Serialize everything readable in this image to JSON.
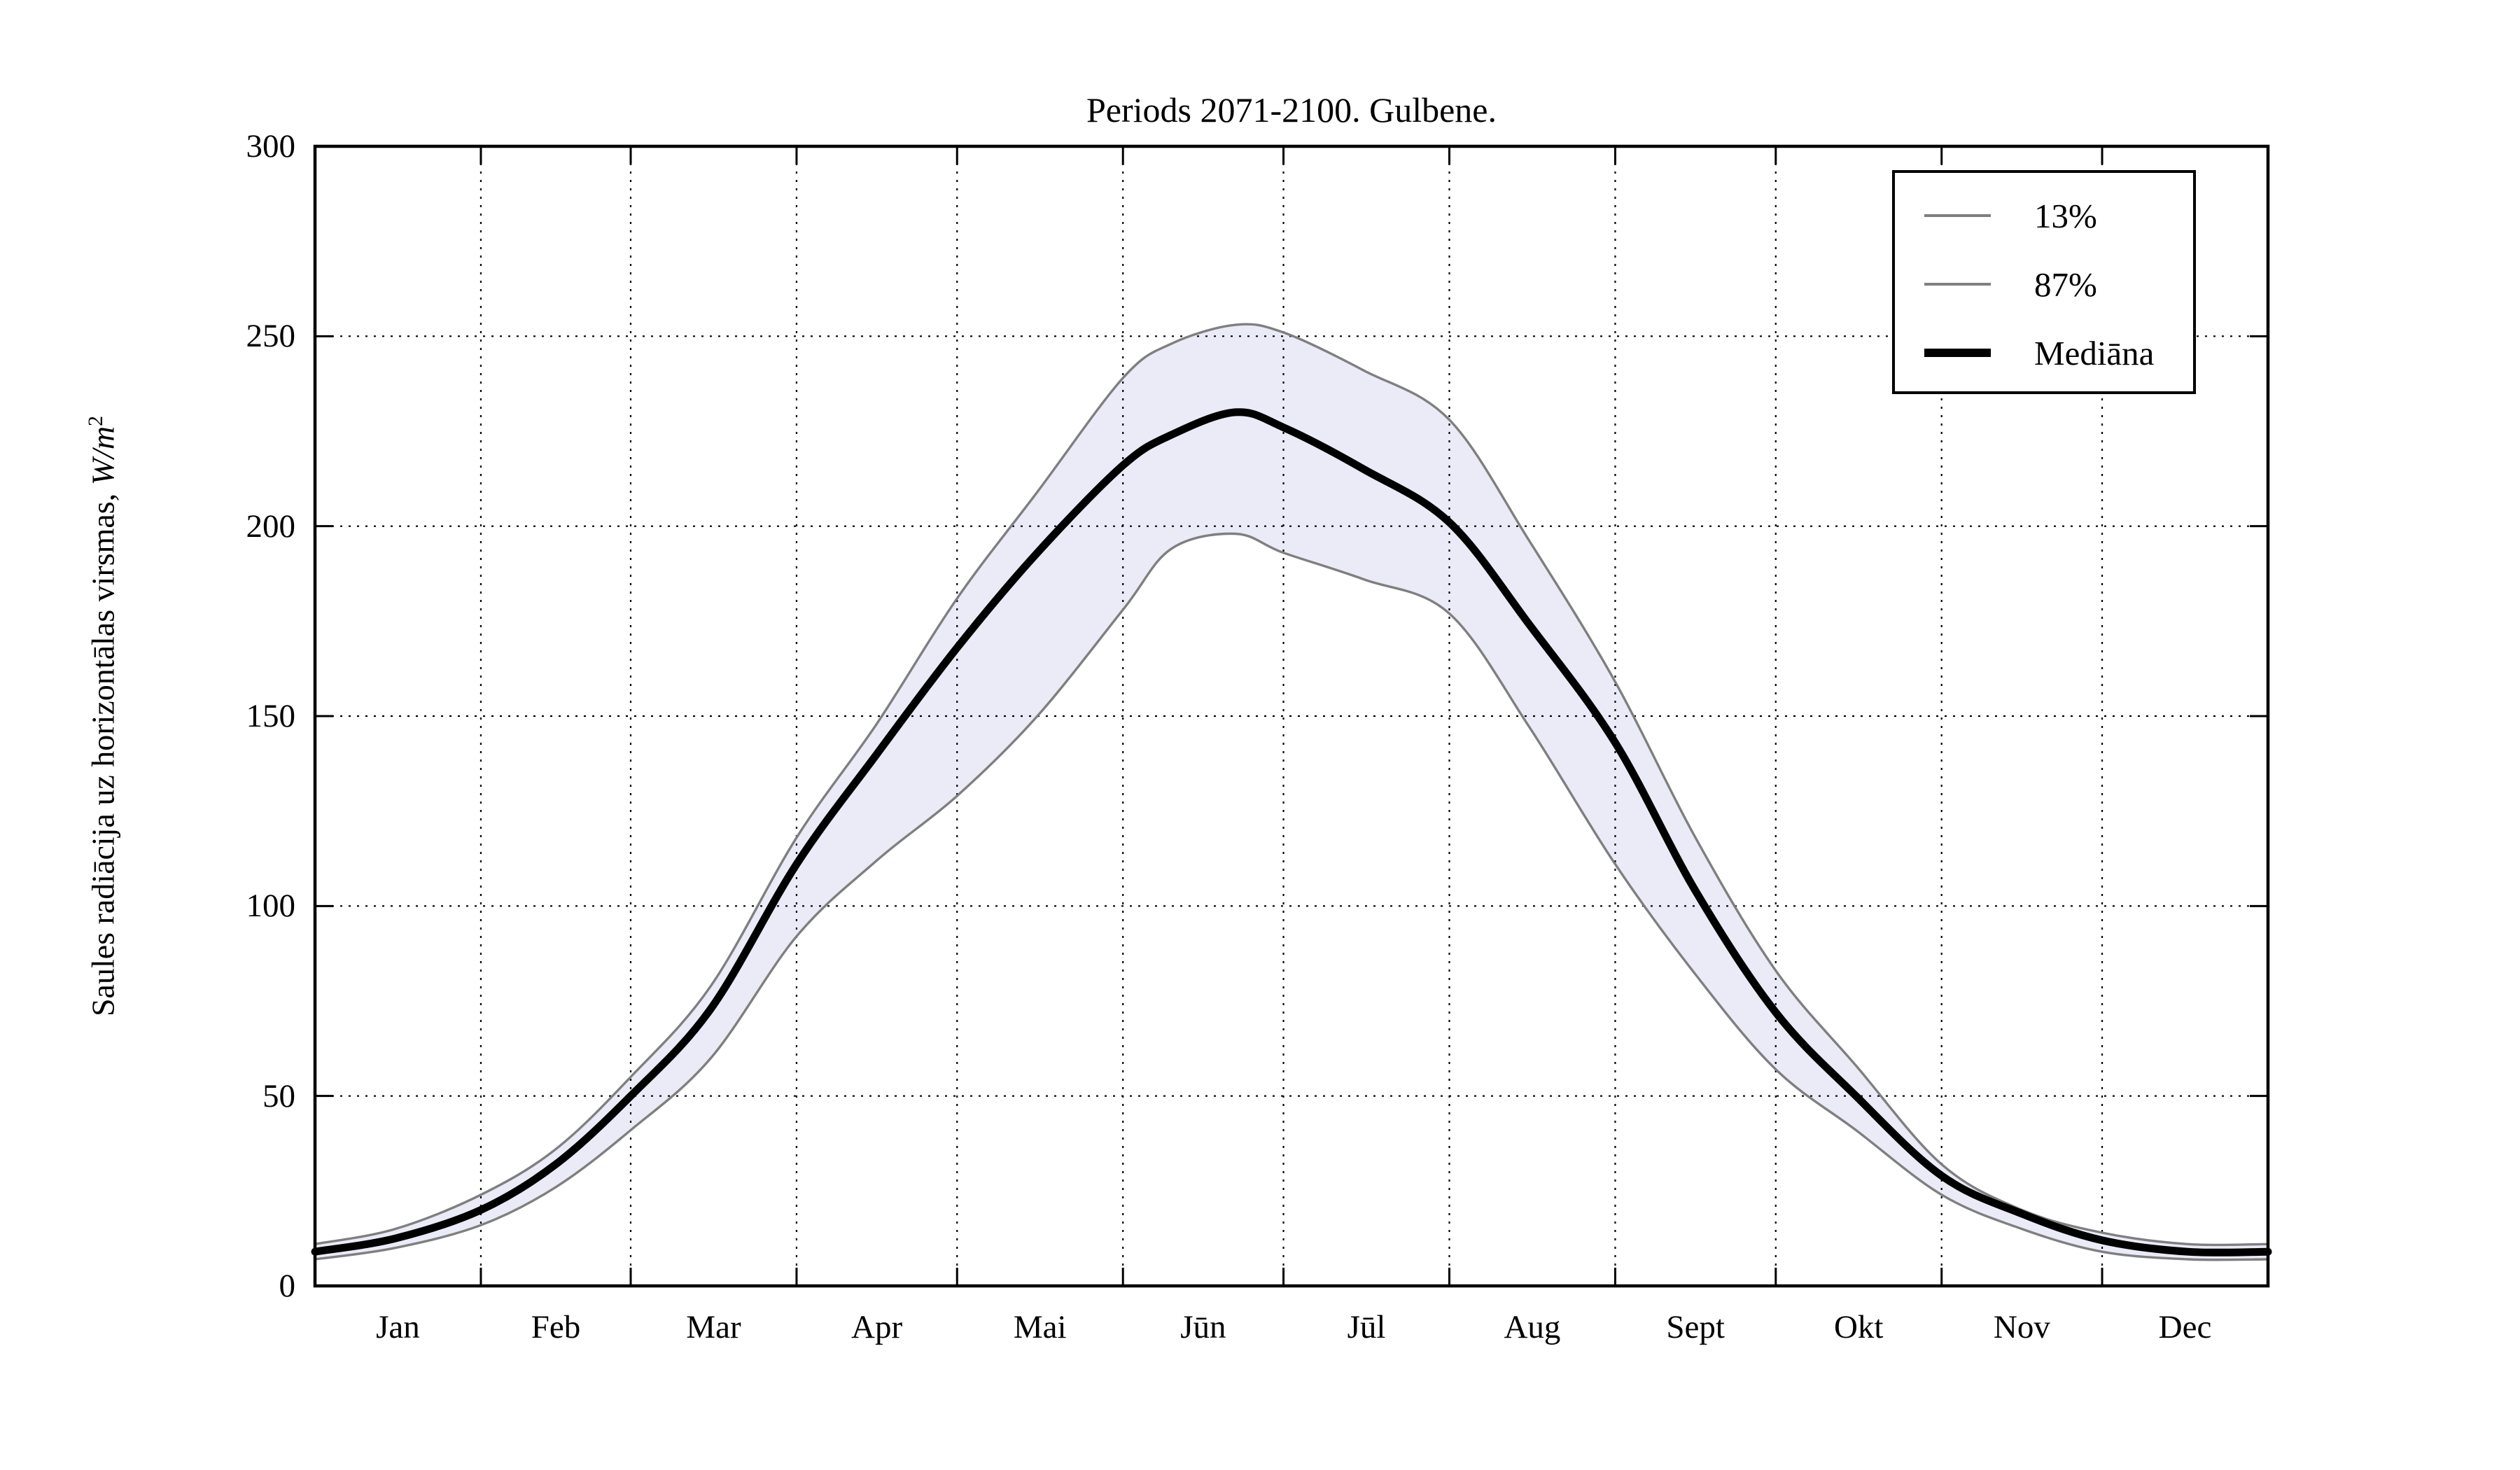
{
  "title": "Periods 2071-2100. Gulbene.",
  "axes": {
    "ylabel_prefix": "Saules radiācija uz horizontālas virsmas, ",
    "ylabel_math": "W/m",
    "ylabel_sup": "2",
    "yticks": [
      0,
      50,
      100,
      150,
      200,
      250,
      300
    ],
    "month_labels": [
      "Jan",
      "Feb",
      "Mar",
      "Apr",
      "Mai",
      "Jūn",
      "Jūl",
      "Aug",
      "Sept",
      "Okt",
      "Nov",
      "Dec"
    ],
    "month_boundary_days": [
      0,
      31,
      59,
      90,
      120,
      151,
      181,
      212,
      243,
      273,
      304,
      334,
      365
    ]
  },
  "legend": {
    "items": [
      {
        "label": "13%",
        "style": "thin-gray"
      },
      {
        "label": "87%",
        "style": "thin-gray"
      },
      {
        "label": "Mediāna",
        "style": "thick-black"
      }
    ]
  },
  "colors": {
    "background": "#FFFFFF",
    "band_fill": "#EAEBF7",
    "percentile_line": "#7F7F7F",
    "median_line": "#000000",
    "grid": "#000000",
    "frame": "#000000"
  },
  "chart_data": {
    "type": "line",
    "title": "Periods 2071-2100. Gulbene.",
    "xlabel": "",
    "ylabel": "Saules radiācija uz horizontālas virsmas, W/m2",
    "ylim": [
      0,
      300
    ],
    "x_unit": "day-of-year",
    "xlim_days": [
      0,
      365
    ],
    "grid": "dotted",
    "legend_position": "upper-right",
    "band_between": [
      "13%",
      "87%"
    ],
    "x_days": [
      0,
      15,
      31,
      45,
      59,
      74,
      90,
      105,
      120,
      135,
      151,
      160,
      172,
      181,
      196,
      212,
      227,
      243,
      258,
      273,
      288,
      304,
      319,
      334,
      350,
      365
    ],
    "series": [
      {
        "name": "13%",
        "role": "lower-percentile",
        "values": [
          7,
          10,
          16,
          26,
          41,
          60,
          92,
          112,
          129,
          150,
          178,
          194,
          198,
          193,
          186,
          177,
          147,
          111,
          82,
          57,
          41,
          24,
          15,
          9,
          7,
          7
        ]
      },
      {
        "name": "87%",
        "role": "upper-percentile",
        "values": [
          11,
          15,
          24,
          36,
          55,
          79,
          118,
          148,
          181,
          209,
          239,
          248,
          253,
          251,
          241,
          228,
          196,
          159,
          118,
          83,
          58,
          32,
          20,
          14,
          11,
          11
        ]
      },
      {
        "name": "Mediāna",
        "role": "median",
        "values": [
          9,
          12.5,
          20,
          32,
          50,
          73,
          111,
          140,
          168,
          193,
          216,
          224,
          230,
          226,
          215,
          201,
          174,
          143,
          104,
          72,
          50,
          29,
          19,
          12,
          9,
          9
        ]
      }
    ]
  }
}
